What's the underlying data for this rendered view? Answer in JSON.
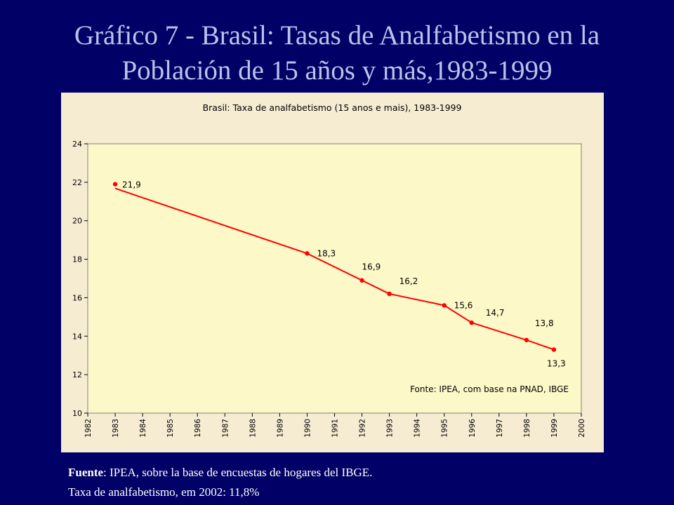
{
  "slide": {
    "title_line1": "Gráfico 7 - Brasil: Tasas de Analfabetismo en la",
    "title_line2": "Población de 15 años y más,1983-1999",
    "footer_source_label": "Fuente",
    "footer_source_text": ": IPEA, sobre la base de encuestas de hogares del IBGE.",
    "footer_note": "Taxa de analfabetismo, em 2002: 11,8%"
  },
  "colors": {
    "background": "#000066",
    "title": "#b8c4ea",
    "chart_panel": "#f6ecd2",
    "plot_area": "#fdf8c8",
    "series": "#ff0000"
  },
  "chart_data": {
    "type": "line",
    "title": "Brasil: Taxa de analfabetismo (15 anos e mais), 1983-1999",
    "xlabel": "",
    "ylabel": "",
    "x_categories": [
      "1982",
      "1983",
      "1984",
      "1985",
      "1986",
      "1987",
      "1988",
      "1989",
      "1990",
      "1991",
      "1992",
      "1993",
      "1994",
      "1995",
      "1996",
      "1997",
      "1998",
      "1999",
      "2000"
    ],
    "x": [
      1983,
      1990,
      1992,
      1993,
      1995,
      1996,
      1998,
      1999
    ],
    "y": [
      21.9,
      18.3,
      16.9,
      16.2,
      15.6,
      14.7,
      13.8,
      13.3
    ],
    "labels": [
      "21,9",
      "18,3",
      "16,9",
      "16,2",
      "15,6",
      "14,7",
      "13,8",
      "13,3"
    ],
    "ylim": [
      10,
      24
    ],
    "yticks": [
      10,
      12,
      14,
      16,
      18,
      20,
      22,
      24
    ],
    "grid": false,
    "annotation": "Fonte: IPEA, com base na PNAD, IBGE"
  }
}
